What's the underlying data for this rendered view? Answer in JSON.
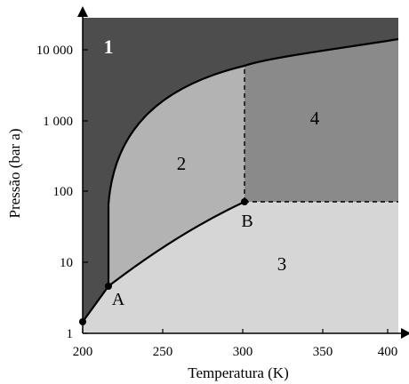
{
  "diagram": {
    "y_axis_label": "Pressão (bar a)",
    "x_axis_label": "Temperatura (K)",
    "x_ticks": [
      "200",
      "250",
      "300",
      "350",
      "400"
    ],
    "y_ticks": [
      "1",
      "10",
      "100",
      "1 000",
      "10 000"
    ],
    "regions": [
      "1",
      "2",
      "3",
      "4"
    ],
    "points": [
      "A",
      "B"
    ],
    "colors": {
      "region_1": "#4d4d4d",
      "region_2": "#b3b3b3",
      "region_3": "#d6d6d6",
      "region_4": "#8a8a8a",
      "curves": "#000000"
    }
  }
}
